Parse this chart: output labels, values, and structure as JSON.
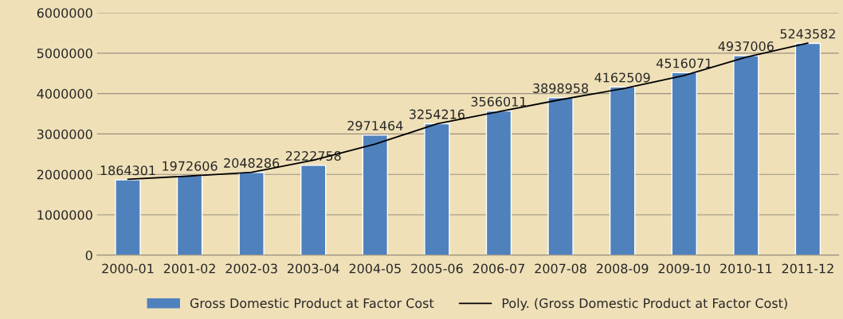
{
  "chart_data": {
    "type": "bar",
    "categories": [
      "2000-01",
      "2001-02",
      "2002-03",
      "2003-04",
      "2004-05",
      "2005-06",
      "2006-07",
      "2007-08",
      "2008-09",
      "2009-10",
      "2010-11",
      "2011-12"
    ],
    "series": [
      {
        "name": "Gross Domestic Product at Factor Cost",
        "color": "#4f81bd",
        "values": [
          1864301,
          1972606,
          2048286,
          2222758,
          2971464,
          3254216,
          3566011,
          3898958,
          4162509,
          4516071,
          4937006,
          5243582
        ],
        "value_labels": [
          "1864301",
          "1972606",
          "2048286",
          "2222758",
          "2971464",
          "3254216",
          "3566011",
          "3898958",
          "4162509",
          "4516071",
          "4937006",
          "5243582"
        ]
      },
      {
        "type": "line",
        "name": "Poly. (Gross Domestic Product at Factor Cost)",
        "color": "#000000",
        "values": [
          1880000,
          1960000,
          2050000,
          2350000,
          2750000,
          3250000,
          3550000,
          3850000,
          4120000,
          4450000,
          4900000,
          5250000
        ]
      }
    ],
    "ylim": [
      0,
      6000000
    ],
    "yticks": [
      0,
      1000000,
      2000000,
      3000000,
      4000000,
      5000000,
      6000000
    ],
    "grid": "y",
    "legend": "bottom"
  }
}
